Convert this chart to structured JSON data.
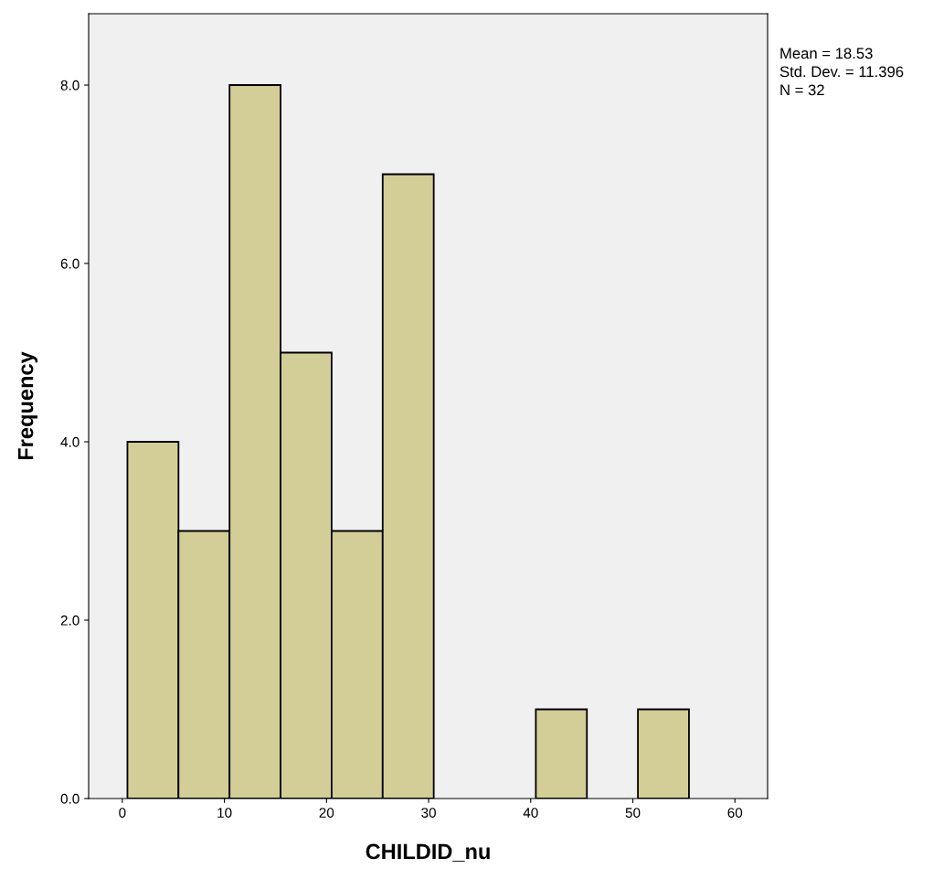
{
  "chart_data": {
    "type": "histogram",
    "xlabel": "CHILDID_nu",
    "ylabel": "Frequency",
    "bins": [
      0.5,
      5.5,
      10.5,
      15.5,
      20.5,
      25.5,
      30.5,
      35.5,
      40.5,
      45.5,
      50.5,
      55.5
    ],
    "values": [
      4,
      3,
      8,
      5,
      3,
      7,
      0,
      0,
      1,
      0,
      1
    ],
    "color": "#d3ce97",
    "xlim": [
      -3.3,
      63.2
    ],
    "xticks": [
      0,
      10,
      20,
      30,
      40,
      50,
      60
    ],
    "ylim": [
      0,
      8.8
    ],
    "yticks": [
      {
        "value": 0,
        "label": "0.0"
      },
      {
        "value": 2,
        "label": "2.0"
      },
      {
        "value": 4,
        "label": "4.0"
      },
      {
        "value": 6,
        "label": "6.0"
      },
      {
        "value": 8,
        "label": "8.0"
      }
    ],
    "annotations": [
      "Mean = 18.53",
      "Std. Dev. = 11.396",
      "N = 32"
    ],
    "grid": false,
    "legend": false
  }
}
